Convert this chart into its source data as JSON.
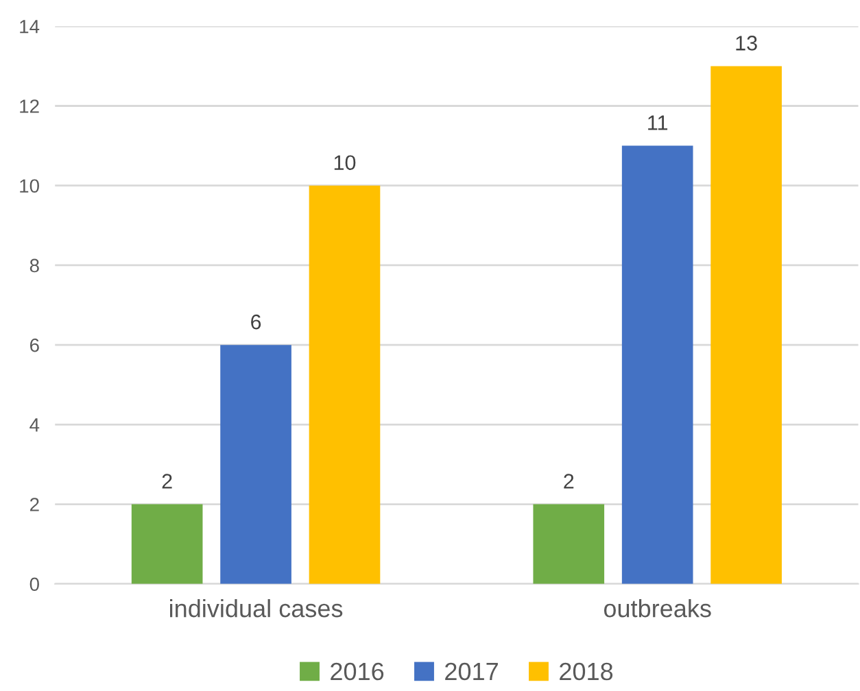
{
  "chart_data": {
    "type": "bar",
    "categories": [
      "individual cases",
      "outbreaks"
    ],
    "series": [
      {
        "name": "2016",
        "color": "#70ad47",
        "values": [
          2,
          2
        ]
      },
      {
        "name": "2017",
        "color": "#4472c4",
        "values": [
          6,
          11
        ]
      },
      {
        "name": "2018",
        "color": "#ffc000",
        "values": [
          10,
          13
        ]
      }
    ],
    "ylim": [
      0,
      14
    ],
    "yticks": [
      0,
      2,
      4,
      6,
      8,
      10,
      12,
      14
    ],
    "grid": "y",
    "legend": "bottom",
    "data_labels": true
  }
}
